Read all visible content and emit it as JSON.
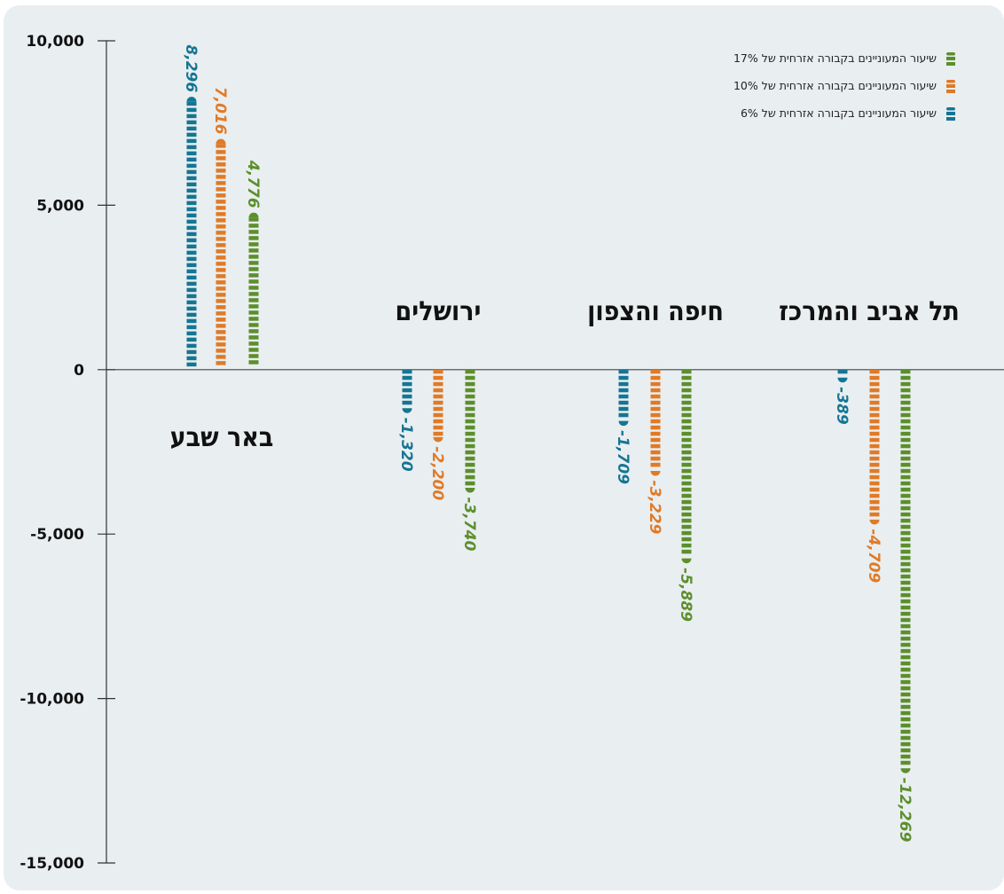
{
  "chart_data": {
    "type": "bar",
    "categories": [
      "באר שבע",
      "ירושלים",
      "חיפה והצפון",
      "תל אביב והמרכז"
    ],
    "series": [
      {
        "name": "שיעור המעוניינים בקבורה אזרחית של 6%",
        "color": "#157593",
        "values": [
          8296,
          -1320,
          -1709,
          -389
        ],
        "labels": [
          "8,296",
          "-1,320",
          "-1,709",
          "-389"
        ]
      },
      {
        "name": "שיעור המעוניינים בקבורה אזרחית של 10%",
        "color": "#e07a26",
        "values": [
          7016,
          -2200,
          -3229,
          -4709
        ],
        "labels": [
          "7,016",
          "-2,200",
          "-3,229",
          "-4,709"
        ]
      },
      {
        "name": "שיעור המעוניינים בקבורה אזרחית של 17%",
        "color": "#5c8f2c",
        "values": [
          4776,
          -3740,
          -5889,
          -12269
        ],
        "labels": [
          "4,776",
          "-3,740",
          "-5,889",
          "-12,269"
        ]
      }
    ],
    "legend_order": [
      2,
      1,
      0
    ],
    "legend_position": "top-right",
    "y_ticks": [
      10000,
      5000,
      0,
      -5000,
      -10000,
      -15000
    ],
    "y_tick_labels": [
      "10,000",
      "5,000",
      "0",
      "-5,000",
      "-10,000",
      "-15,000"
    ],
    "ylim": [
      -15000,
      10000
    ],
    "grid": false,
    "title": "",
    "xlabel": "",
    "ylabel": ""
  }
}
